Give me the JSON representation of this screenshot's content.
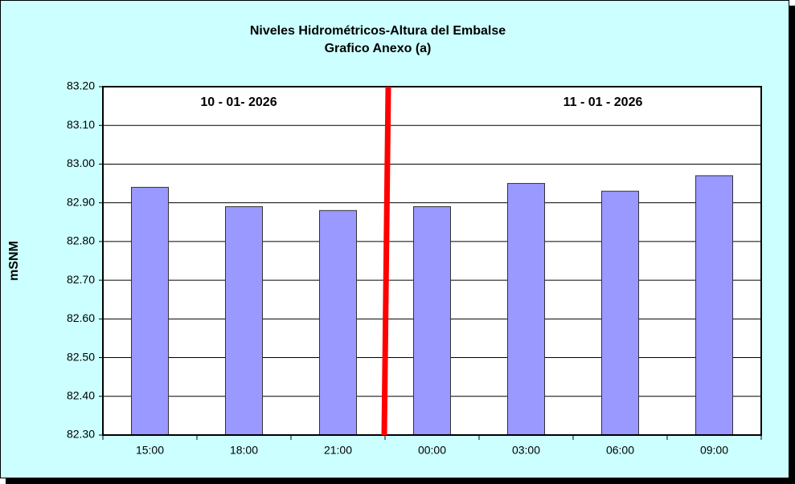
{
  "chart_data": {
    "type": "bar",
    "title": "Niveles Hidrométricos-Altura del Embalse",
    "subtitle": "Grafico Anexo (a)",
    "y_label": "mSNM",
    "annotations": [
      "10 - 01- 2026",
      "11 - 01 - 2026"
    ],
    "categories": [
      "15:00",
      "18:00",
      "21:00",
      "00:00",
      "03:00",
      "06:00",
      "09:00"
    ],
    "values": [
      82.94,
      82.89,
      82.88,
      82.89,
      82.95,
      82.93,
      82.97
    ],
    "color": "#9999ff",
    "ylim": [
      82.3,
      83.2
    ],
    "yticks": [
      {
        "value": 82.3,
        "label": "82.30"
      },
      {
        "value": 82.4,
        "label": "82.40"
      },
      {
        "value": 82.5,
        "label": "82.50"
      },
      {
        "value": 82.6,
        "label": "82.60"
      },
      {
        "value": 82.7,
        "label": "82.70"
      },
      {
        "value": 82.8,
        "label": "82.80"
      },
      {
        "value": 82.9,
        "label": "82.90"
      },
      {
        "value": 83.0,
        "label": "83.00"
      },
      {
        "value": 83.1,
        "label": "83.10"
      },
      {
        "value": 83.2,
        "label": "83.20"
      }
    ],
    "grid": true
  }
}
